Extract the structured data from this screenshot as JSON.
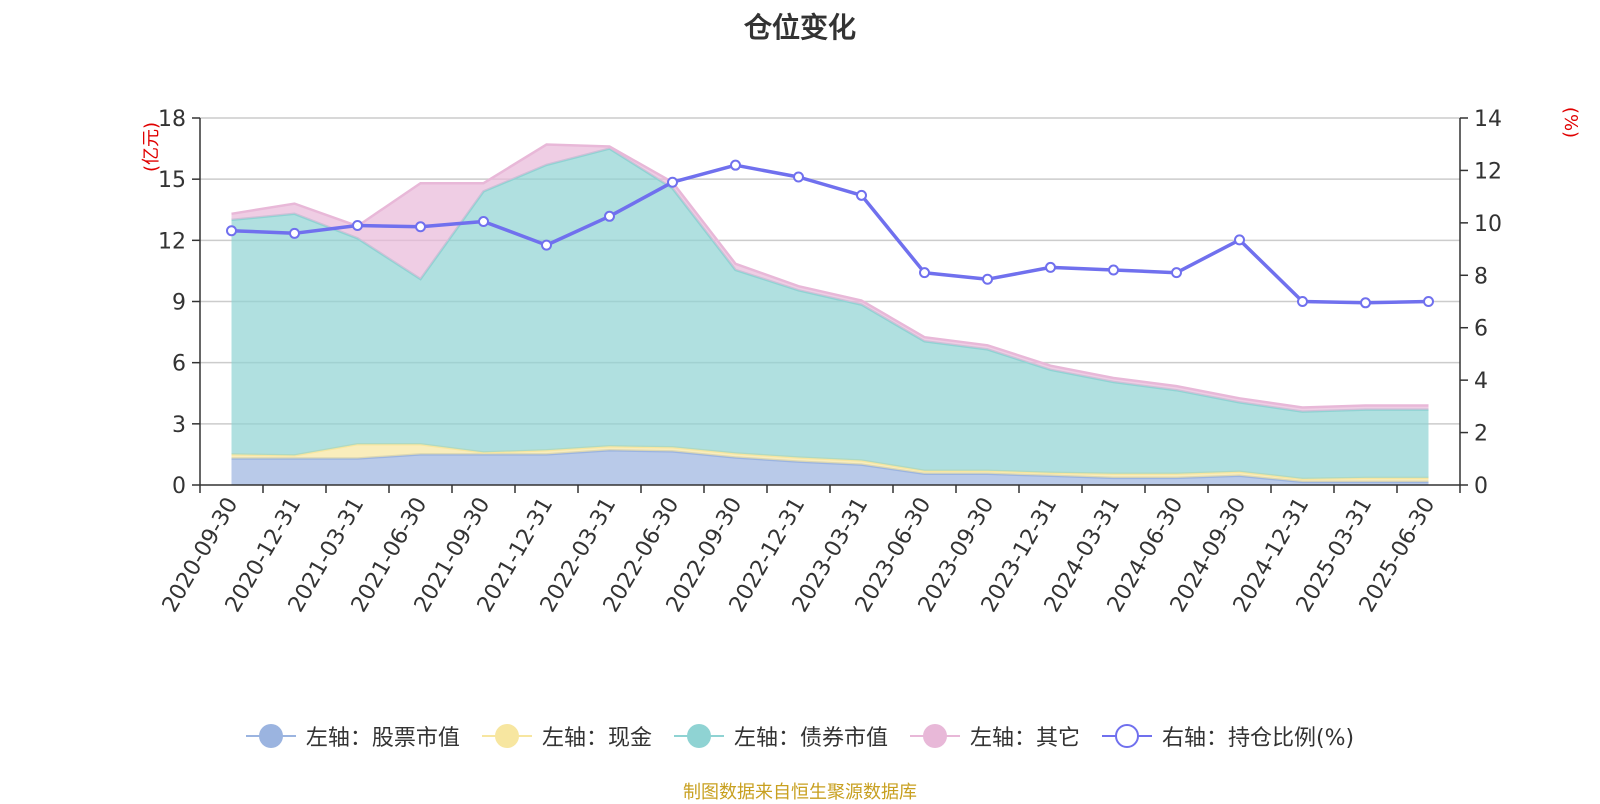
{
  "chart_data": {
    "type": "area",
    "title": "仓位变化",
    "left_axis_unit": "(亿元)",
    "right_axis_unit": "(%)",
    "categories": [
      "2020-09-30",
      "2020-12-31",
      "2021-03-31",
      "2021-06-30",
      "2021-09-30",
      "2021-12-31",
      "2022-03-31",
      "2022-06-30",
      "2022-09-30",
      "2022-12-31",
      "2023-03-31",
      "2023-06-30",
      "2023-09-30",
      "2023-12-31",
      "2024-03-31",
      "2024-06-30",
      "2024-09-30",
      "2024-12-31",
      "2025-03-31",
      "2025-06-30"
    ],
    "left_ylim": [
      0,
      18
    ],
    "left_ticks": [
      0,
      3,
      6,
      9,
      12,
      15,
      18
    ],
    "right_ylim": [
      0,
      14
    ],
    "right_ticks": [
      0,
      2,
      4,
      6,
      8,
      10,
      12,
      14
    ],
    "grid": true,
    "legend_position": "bottom",
    "series": [
      {
        "name": "左轴：股票市值",
        "axis": "left",
        "stacked": true,
        "color": "#9bb4e0",
        "values": [
          1.3,
          1.3,
          1.3,
          1.5,
          1.5,
          1.5,
          1.7,
          1.65,
          1.35,
          1.15,
          1.0,
          0.55,
          0.55,
          0.45,
          0.35,
          0.35,
          0.45,
          0.15,
          0.15,
          0.15
        ]
      },
      {
        "name": "左轴：现金",
        "axis": "left",
        "stacked": true,
        "color": "#f7e6a0",
        "values": [
          0.2,
          0.15,
          0.7,
          0.5,
          0.1,
          0.2,
          0.2,
          0.2,
          0.2,
          0.2,
          0.2,
          0.15,
          0.15,
          0.15,
          0.2,
          0.2,
          0.2,
          0.15,
          0.2,
          0.2
        ]
      },
      {
        "name": "左轴：债券市值",
        "axis": "left",
        "stacked": true,
        "color": "#8fd3d3",
        "values": [
          11.5,
          11.85,
          10.1,
          8.1,
          12.8,
          14.0,
          14.6,
          12.7,
          9.0,
          8.2,
          7.65,
          6.35,
          5.95,
          5.05,
          4.5,
          4.1,
          3.4,
          3.3,
          3.35,
          3.35
        ]
      },
      {
        "name": "左轴：其它",
        "axis": "left",
        "stacked": true,
        "color": "#e8b8d8",
        "values": [
          0.3,
          0.5,
          0.6,
          4.7,
          0.4,
          1.0,
          0.1,
          0.3,
          0.3,
          0.2,
          0.2,
          0.2,
          0.2,
          0.2,
          0.2,
          0.2,
          0.2,
          0.2,
          0.2,
          0.2
        ]
      },
      {
        "name": "右轴：持仓比例(%)",
        "axis": "right",
        "stacked": false,
        "color": "#7070ee",
        "values": [
          9.7,
          9.6,
          9.9,
          9.85,
          10.05,
          9.15,
          10.25,
          11.55,
          12.2,
          11.75,
          11.05,
          8.1,
          7.85,
          8.3,
          8.2,
          8.1,
          9.35,
          7.0,
          6.95,
          7.0
        ]
      }
    ]
  },
  "legend": [
    {
      "label": "左轴：股票市值",
      "color": "#9bb4e0",
      "style": "filled"
    },
    {
      "label": "左轴：现金",
      "color": "#f7e6a0",
      "style": "filled"
    },
    {
      "label": "左轴：债券市值",
      "color": "#8fd3d3",
      "style": "filled"
    },
    {
      "label": "左轴：其它",
      "color": "#e8b8d8",
      "style": "filled"
    },
    {
      "label": "右轴：持仓比例(%)",
      "color": "#7070ee",
      "style": "hollow"
    }
  ],
  "source_text": "制图数据来自恒生聚源数据库"
}
